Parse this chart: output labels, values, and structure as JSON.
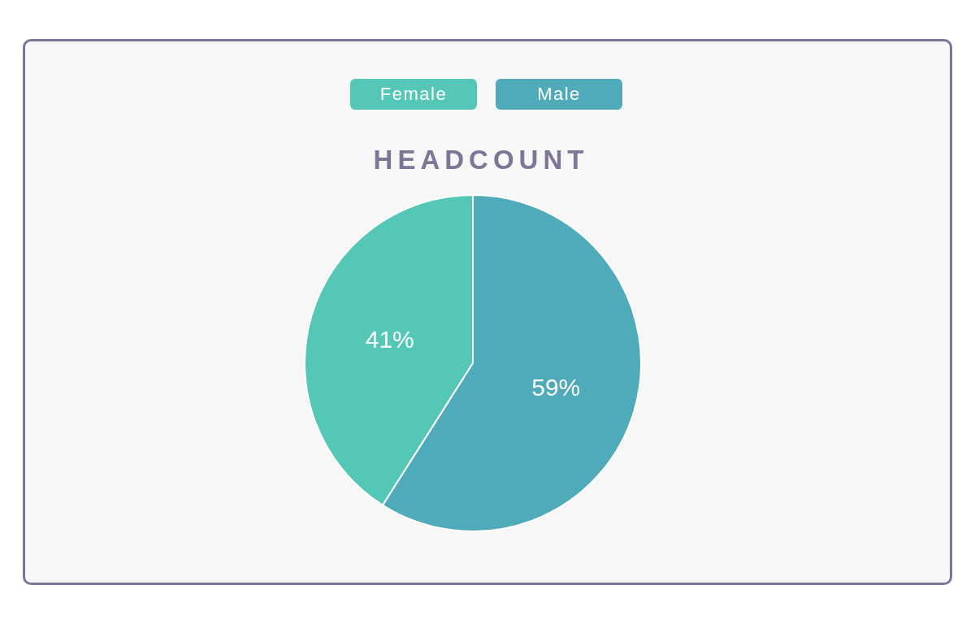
{
  "chart_data": {
    "type": "pie",
    "title": "HEADCOUNT",
    "categories": [
      "Female",
      "Male"
    ],
    "values": [
      41,
      59
    ],
    "colors": [
      "#54c7b6",
      "#4faab9"
    ],
    "value_labels": [
      "41%",
      "59%"
    ],
    "legend": "top"
  }
}
